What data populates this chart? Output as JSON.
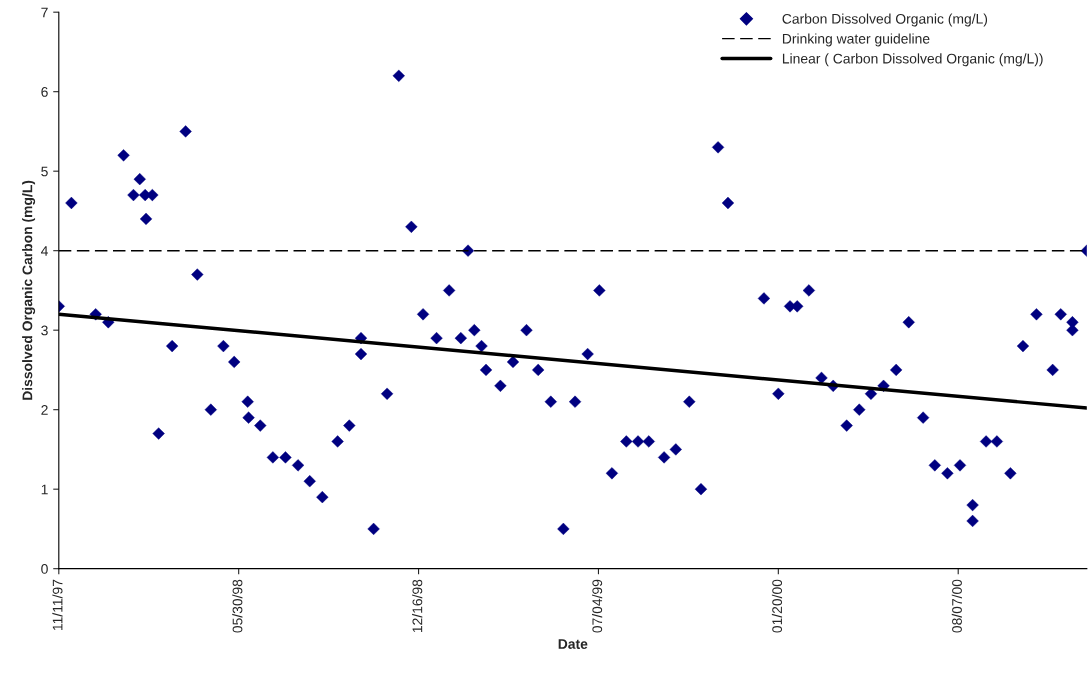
{
  "chart_data": {
    "type": "scatter",
    "xlabel": "Date",
    "ylabel": "Dissolved Organic Carbon (mg/L)",
    "xlim": [
      "1997-11-11",
      "2000-12-28"
    ],
    "xticks": [
      {
        "value": "1997-11-11",
        "label": "11/11/97"
      },
      {
        "value": "1998-05-30",
        "label": "05/30/98"
      },
      {
        "value": "1998-12-16",
        "label": "12/16/98"
      },
      {
        "value": "1999-07-04",
        "label": "07/04/99"
      },
      {
        "value": "2000-01-20",
        "label": "01/20/00"
      },
      {
        "value": "2000-08-07",
        "label": "08/07/00"
      }
    ],
    "ylim": [
      0,
      7
    ],
    "yticks": [
      0,
      1,
      2,
      3,
      4,
      5,
      6,
      7
    ],
    "grid": false,
    "legend": "top right",
    "marker": "diamond",
    "series": [
      {
        "name": "Carbon Dissolved Organic (mg/L)",
        "color": "#000080",
        "x": [
          "1997-11-11",
          "1997-11-25",
          "1997-12-22",
          "1998-01-05",
          "1998-01-22",
          "1998-02-02",
          "1998-02-09",
          "1998-02-15",
          "1998-02-16",
          "1998-02-23",
          "1998-03-02",
          "1998-03-17",
          "1998-04-01",
          "1998-04-14",
          "1998-04-29",
          "1998-05-13",
          "1998-05-25",
          "1998-06-09",
          "1998-06-10",
          "1998-06-23",
          "1998-07-07",
          "1998-07-21",
          "1998-08-04",
          "1998-08-17",
          "1998-08-31",
          "1998-09-17",
          "1998-09-30",
          "1998-10-13",
          "1998-10-13",
          "1998-10-27",
          "1998-11-11",
          "1998-11-24",
          "1998-12-08",
          "1998-12-21",
          "1999-01-05",
          "1999-01-19",
          "1999-02-01",
          "1999-02-09",
          "1999-02-16",
          "1999-02-24",
          "1999-03-01",
          "1999-03-17",
          "1999-03-31",
          "1999-04-15",
          "1999-04-28",
          "1999-05-12",
          "1999-05-26",
          "1999-06-08",
          "1999-06-22",
          "1999-07-05",
          "1999-07-19",
          "1999-08-04",
          "1999-08-17",
          "1999-08-29",
          "1999-09-15",
          "1999-09-28",
          "1999-10-13",
          "1999-10-26",
          "1999-11-14",
          "1999-11-25",
          "2000-01-04",
          "2000-01-20",
          "2000-02-02",
          "2000-02-10",
          "2000-02-23",
          "2000-03-08",
          "2000-03-21",
          "2000-04-05",
          "2000-04-19",
          "2000-05-02",
          "2000-05-16",
          "2000-05-30",
          "2000-06-13",
          "2000-06-29",
          "2000-07-12",
          "2000-07-26",
          "2000-08-09",
          "2000-08-23",
          "2000-08-23",
          "2000-09-07",
          "2000-09-19",
          "2000-10-04",
          "2000-10-18",
          "2000-11-02",
          "2000-11-20",
          "2000-11-29",
          "2000-12-12",
          "2000-12-12",
          "2000-12-28"
        ],
        "values": [
          3.3,
          4.6,
          3.2,
          3.1,
          5.2,
          4.7,
          4.9,
          4.7,
          4.4,
          4.7,
          1.7,
          2.8,
          5.5,
          3.7,
          2.0,
          2.8,
          2.6,
          2.1,
          1.9,
          1.8,
          1.4,
          1.4,
          1.3,
          1.1,
          0.9,
          1.6,
          1.8,
          2.9,
          2.7,
          0.5,
          2.2,
          6.2,
          4.3,
          3.2,
          2.9,
          3.5,
          2.9,
          4.0,
          3.0,
          2.8,
          2.5,
          2.3,
          2.6,
          3.0,
          2.5,
          2.1,
          0.5,
          2.1,
          2.7,
          3.5,
          1.2,
          1.6,
          1.6,
          1.6,
          1.4,
          1.5,
          2.1,
          1.0,
          5.3,
          4.6,
          3.4,
          2.2,
          3.3,
          3.3,
          3.5,
          2.4,
          2.3,
          1.8,
          2.0,
          2.2,
          2.3,
          2.5,
          3.1,
          1.9,
          1.3,
          1.2,
          1.3,
          0.8,
          0.6,
          1.6,
          1.6,
          1.2,
          2.8,
          3.2,
          2.5,
          3.2,
          3.1,
          3.0,
          4.0
        ]
      },
      {
        "name": "Linear ( Carbon Dissolved Organic (mg/L))",
        "type": "line",
        "color": "#000000",
        "line_style": "solid",
        "marker": "none",
        "x": [
          "1997-11-11",
          "2000-12-28"
        ],
        "values": [
          3.2,
          2.02
        ]
      }
    ],
    "ref_lines": [
      {
        "axis": "y",
        "value": 4,
        "label": "Drinking water guideline",
        "color": "#000000",
        "line_style": "dashed"
      }
    ]
  }
}
